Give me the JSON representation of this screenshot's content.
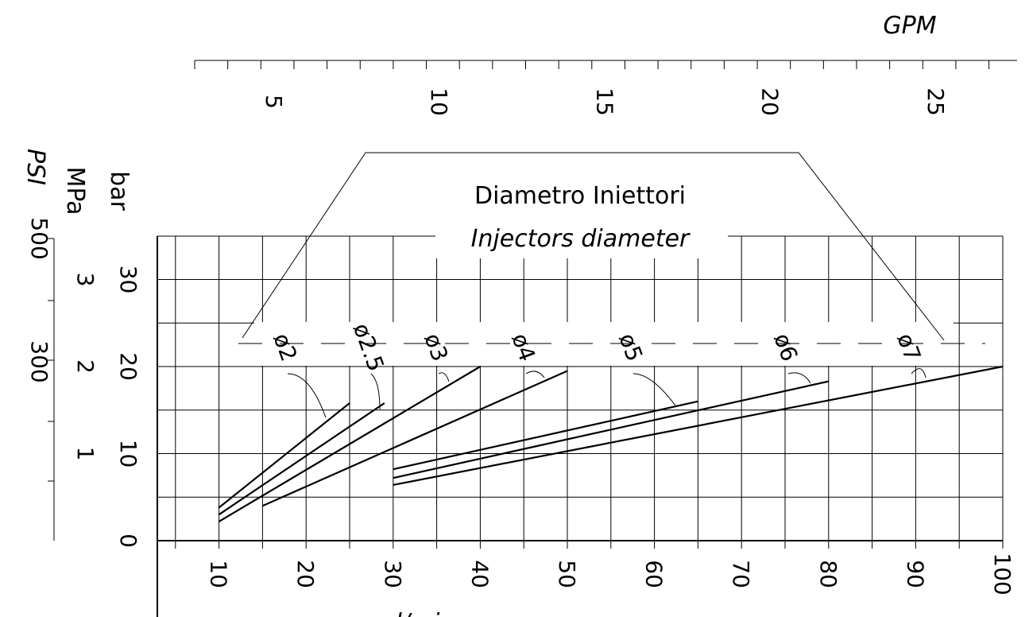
{
  "chart_data": {
    "type": "line",
    "title": "Diametro Iniettori",
    "subtitle": "Injectors diameter",
    "x_axis": {
      "unit_label": "l/min",
      "range": [
        0,
        100
      ],
      "tick_labels": [
        "10",
        "20",
        "30",
        "40",
        "50",
        "60",
        "70",
        "80",
        "90",
        "100"
      ],
      "tick_values": [
        10,
        20,
        30,
        40,
        50,
        60,
        70,
        80,
        90,
        100
      ]
    },
    "secondary_x_axis": {
      "unit_label": "GPM",
      "tick_labels": [
        "5",
        "10",
        "15",
        "20",
        "25"
      ],
      "tick_values": [
        5,
        10,
        15,
        20,
        25
      ]
    },
    "y_axes": {
      "bar": {
        "unit_label": "bar",
        "tick_labels": [
          "0",
          "10",
          "20",
          "30"
        ],
        "tick_values": [
          0,
          10,
          20,
          30
        ]
      },
      "mpa": {
        "unit_label": "MPa",
        "tick_labels": [
          "1",
          "2",
          "3"
        ],
        "tick_values": [
          1,
          2,
          3
        ]
      },
      "psi": {
        "unit_label": "PSI",
        "tick_labels": [
          "300",
          "500"
        ],
        "tick_values": [
          300,
          500
        ]
      }
    },
    "ylim": [
      0,
      35
    ],
    "grid": true,
    "series": [
      {
        "name": "ø2",
        "x": [
          10,
          25
        ],
        "y": [
          3.8,
          15.8
        ]
      },
      {
        "name": "ø2.5",
        "x": [
          10,
          29
        ],
        "y": [
          3.0,
          15.8
        ]
      },
      {
        "name": "ø3",
        "x": [
          10,
          40
        ],
        "y": [
          2.2,
          20.0
        ]
      },
      {
        "name": "ø4",
        "x": [
          15,
          50
        ],
        "y": [
          4.0,
          19.5
        ]
      },
      {
        "name": "ø5",
        "x": [
          30,
          65
        ],
        "y": [
          8.2,
          16.0
        ]
      },
      {
        "name": "ø6",
        "x": [
          30,
          80
        ],
        "y": [
          7.2,
          18.3
        ]
      },
      {
        "name": "ø7",
        "x": [
          30,
          100
        ],
        "y": [
          6.4,
          20.0
        ]
      }
    ]
  }
}
